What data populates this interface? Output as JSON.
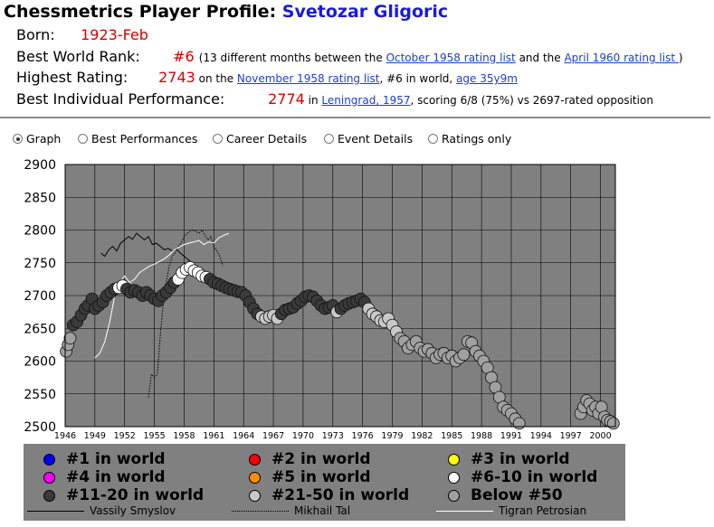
{
  "header": {
    "title_prefix": "Chessmetrics Player Profile:",
    "player_name": "Svetozar Gligoric"
  },
  "info": {
    "born_label": "Born:",
    "born_value": "1923-Feb",
    "rank_label": "Best World Rank:",
    "rank_value": "#6",
    "rank_text_1": "(13 different months between the ",
    "rank_link_1": "October 1958 rating list",
    "rank_text_2": " and the ",
    "rank_link_2": "April 1960 rating list ",
    "rank_text_3": ")",
    "highest_label": "Highest Rating:",
    "highest_value": "2743",
    "highest_text_1": " on the ",
    "highest_link_1": "November 1958 rating list",
    "highest_text_2": ", #6 in world, ",
    "highest_link_2": "age 35y9m",
    "perf_label": "Best Individual Performance:",
    "perf_value": "2774",
    "perf_text_1": " in ",
    "perf_link_1": "Leningrad, 1957",
    "perf_text_2": ", scoring 6/8 (75%) vs 2697-rated opposition"
  },
  "tabs": [
    {
      "label": "Graph",
      "selected": true
    },
    {
      "label": "Best Performances",
      "selected": false
    },
    {
      "label": "Career Details",
      "selected": false
    },
    {
      "label": "Event Details",
      "selected": false
    },
    {
      "label": "Ratings only",
      "selected": false
    }
  ],
  "legend": {
    "ranks": [
      {
        "label": "#1 in world",
        "color": "#0000ff"
      },
      {
        "label": "#2 in world",
        "color": "#ff0000"
      },
      {
        "label": "#3 in world",
        "color": "#ffff00"
      },
      {
        "label": "#4 in world",
        "color": "#ff00ff"
      },
      {
        "label": "#5 in world",
        "color": "#ff8c00"
      },
      {
        "label": "#6-10 in world",
        "color": "#ffffff"
      },
      {
        "label": "#11-20 in world",
        "color": "#3a3a3a"
      },
      {
        "label": "#21-50 in world",
        "color": "#c8c8c8"
      },
      {
        "label": "Below #50",
        "color": "#a0a0a0"
      }
    ],
    "players": [
      {
        "label": "Vassily Smyslov",
        "style": "solid",
        "color": "#000000"
      },
      {
        "label": "Mikhail Tal",
        "style": "dotted",
        "color": "#000000"
      },
      {
        "label": "Tigran Petrosian",
        "style": "solid",
        "color": "#ffffff"
      }
    ]
  },
  "chart_data": {
    "type": "scatter",
    "ylim": [
      2500,
      2900
    ],
    "xlim": [
      1946,
      2001.5
    ],
    "y_ticks": [
      2500,
      2550,
      2600,
      2650,
      2700,
      2750,
      2800,
      2850,
      2900
    ],
    "x_ticks": [
      "1946",
      "1949",
      "1952",
      "1955",
      "1958",
      "1961",
      "1964",
      "1967",
      "1970",
      "1973",
      "1976",
      "1979",
      "1982",
      "1985",
      "1988",
      "1991",
      "1994",
      "1997",
      "2000"
    ],
    "grid": true,
    "background": "#808080",
    "series": [
      {
        "name": "Svetozar Gligoric",
        "points": [
          [
            1946.1,
            2615,
            "b"
          ],
          [
            1946.3,
            2625,
            "b"
          ],
          [
            1946.5,
            2635,
            "b"
          ],
          [
            1946.8,
            2655,
            "d"
          ],
          [
            1947.2,
            2660,
            "d"
          ],
          [
            1947.6,
            2670,
            "d"
          ],
          [
            1948.0,
            2680,
            "d"
          ],
          [
            1948.3,
            2685,
            "d"
          ],
          [
            1948.7,
            2695,
            "d"
          ],
          [
            1949.0,
            2680,
            "d"
          ],
          [
            1949.4,
            2685,
            "d"
          ],
          [
            1949.8,
            2690,
            "d"
          ],
          [
            1950.2,
            2700,
            "d"
          ],
          [
            1950.6,
            2705,
            "d"
          ],
          [
            1951.0,
            2710,
            "d"
          ],
          [
            1951.4,
            2712,
            "w"
          ],
          [
            1951.8,
            2715,
            "w"
          ],
          [
            1952.2,
            2710,
            "d"
          ],
          [
            1952.6,
            2705,
            "d"
          ],
          [
            1953.0,
            2708,
            "d"
          ],
          [
            1953.4,
            2705,
            "d"
          ],
          [
            1953.8,
            2700,
            "d"
          ],
          [
            1954.2,
            2705,
            "d"
          ],
          [
            1954.6,
            2700,
            "d"
          ],
          [
            1955.0,
            2695,
            "d"
          ],
          [
            1955.4,
            2692,
            "d"
          ],
          [
            1955.8,
            2700,
            "d"
          ],
          [
            1956.2,
            2705,
            "d"
          ],
          [
            1956.6,
            2712,
            "d"
          ],
          [
            1957.0,
            2720,
            "d"
          ],
          [
            1957.4,
            2725,
            "w"
          ],
          [
            1957.8,
            2735,
            "w"
          ],
          [
            1958.2,
            2740,
            "w"
          ],
          [
            1958.6,
            2743,
            "w"
          ],
          [
            1959.0,
            2738,
            "w"
          ],
          [
            1959.4,
            2735,
            "w"
          ],
          [
            1959.8,
            2730,
            "w"
          ],
          [
            1960.2,
            2728,
            "w"
          ],
          [
            1960.6,
            2725,
            "d"
          ],
          [
            1961.0,
            2720,
            "d"
          ],
          [
            1961.4,
            2718,
            "d"
          ],
          [
            1961.8,
            2715,
            "d"
          ],
          [
            1962.2,
            2712,
            "d"
          ],
          [
            1962.6,
            2710,
            "d"
          ],
          [
            1963.0,
            2708,
            "d"
          ],
          [
            1963.4,
            2706,
            "d"
          ],
          [
            1963.8,
            2705,
            "d"
          ],
          [
            1964.2,
            2700,
            "d"
          ],
          [
            1964.6,
            2690,
            "d"
          ],
          [
            1965.0,
            2680,
            "d"
          ],
          [
            1965.4,
            2672,
            "d"
          ],
          [
            1965.8,
            2668,
            "l"
          ],
          [
            1966.2,
            2665,
            "l"
          ],
          [
            1966.6,
            2668,
            "l"
          ],
          [
            1967.0,
            2670,
            "l"
          ],
          [
            1967.4,
            2665,
            "l"
          ],
          [
            1967.8,
            2672,
            "d"
          ],
          [
            1968.2,
            2678,
            "d"
          ],
          [
            1968.6,
            2680,
            "d"
          ],
          [
            1969.0,
            2682,
            "d"
          ],
          [
            1969.4,
            2688,
            "d"
          ],
          [
            1969.8,
            2692,
            "d"
          ],
          [
            1970.2,
            2698,
            "d"
          ],
          [
            1970.6,
            2700,
            "d"
          ],
          [
            1971.0,
            2698,
            "d"
          ],
          [
            1971.4,
            2692,
            "d"
          ],
          [
            1971.8,
            2685,
            "d"
          ],
          [
            1972.2,
            2680,
            "d"
          ],
          [
            1972.6,
            2682,
            "d"
          ],
          [
            1973.0,
            2685,
            "d"
          ],
          [
            1973.4,
            2675,
            "l"
          ],
          [
            1973.8,
            2680,
            "d"
          ],
          [
            1974.2,
            2685,
            "d"
          ],
          [
            1974.6,
            2688,
            "d"
          ],
          [
            1975.0,
            2690,
            "d"
          ],
          [
            1975.4,
            2692,
            "d"
          ],
          [
            1975.8,
            2695,
            "d"
          ],
          [
            1976.2,
            2690,
            "d"
          ],
          [
            1976.6,
            2680,
            "l"
          ],
          [
            1977.0,
            2672,
            "l"
          ],
          [
            1977.4,
            2668,
            "l"
          ],
          [
            1977.8,
            2662,
            "l"
          ],
          [
            1978.2,
            2660,
            "l"
          ],
          [
            1978.6,
            2665,
            "l"
          ],
          [
            1979.0,
            2655,
            "l"
          ],
          [
            1979.4,
            2645,
            "l"
          ],
          [
            1979.8,
            2635,
            "b"
          ],
          [
            1980.2,
            2630,
            "b"
          ],
          [
            1980.6,
            2620,
            "b"
          ],
          [
            1981.0,
            2625,
            "b"
          ],
          [
            1981.4,
            2630,
            "b"
          ],
          [
            1981.8,
            2620,
            "b"
          ],
          [
            1982.2,
            2615,
            "b"
          ],
          [
            1982.6,
            2618,
            "b"
          ],
          [
            1983.0,
            2612,
            "b"
          ],
          [
            1983.4,
            2605,
            "b"
          ],
          [
            1983.8,
            2610,
            "b"
          ],
          [
            1984.2,
            2612,
            "b"
          ],
          [
            1984.6,
            2605,
            "b"
          ],
          [
            1985.0,
            2608,
            "b"
          ],
          [
            1985.4,
            2600,
            "b"
          ],
          [
            1985.8,
            2605,
            "b"
          ],
          [
            1986.2,
            2610,
            "b"
          ],
          [
            1986.6,
            2630,
            "b"
          ],
          [
            1987.0,
            2628,
            "b"
          ],
          [
            1987.4,
            2615,
            "b"
          ],
          [
            1987.8,
            2608,
            "b"
          ],
          [
            1988.2,
            2600,
            "b"
          ],
          [
            1988.6,
            2590,
            "b"
          ],
          [
            1989.0,
            2575,
            "b"
          ],
          [
            1989.4,
            2560,
            "b"
          ],
          [
            1989.8,
            2545,
            "b"
          ],
          [
            1990.2,
            2530,
            "b"
          ],
          [
            1990.6,
            2525,
            "b"
          ],
          [
            1991.0,
            2520,
            "b"
          ],
          [
            1991.4,
            2512,
            "b"
          ],
          [
            1991.8,
            2505,
            "b"
          ],
          [
            1998.0,
            2520,
            "b"
          ],
          [
            1998.3,
            2530,
            "b"
          ],
          [
            1998.6,
            2540,
            "b"
          ],
          [
            1998.9,
            2535,
            "b"
          ],
          [
            1999.2,
            2525,
            "b"
          ],
          [
            1999.5,
            2530,
            "b"
          ],
          [
            1999.8,
            2520,
            "b"
          ],
          [
            2000.1,
            2530,
            "b"
          ],
          [
            2000.4,
            2515,
            "b"
          ],
          [
            2000.7,
            2510,
            "b"
          ],
          [
            2001.0,
            2508,
            "b"
          ],
          [
            2001.3,
            2505,
            "b"
          ]
        ]
      },
      {
        "name": "Vassily Smyslov",
        "style": "solid",
        "color": "#000000",
        "points": [
          [
            1949.6,
            2765
          ],
          [
            1950.0,
            2760
          ],
          [
            1950.4,
            2770
          ],
          [
            1950.8,
            2775
          ],
          [
            1951.2,
            2768
          ],
          [
            1951.6,
            2780
          ],
          [
            1952.0,
            2785
          ],
          [
            1952.4,
            2790
          ],
          [
            1952.8,
            2786
          ],
          [
            1953.2,
            2795
          ],
          [
            1953.6,
            2790
          ],
          [
            1954.0,
            2785
          ],
          [
            1954.4,
            2790
          ],
          [
            1954.8,
            2778
          ],
          [
            1955.2,
            2780
          ],
          [
            1955.6,
            2775
          ],
          [
            1956.0,
            2770
          ],
          [
            1956.4,
            2772
          ],
          [
            1956.8,
            2768
          ],
          [
            1957.2,
            2772
          ],
          [
            1957.6,
            2765
          ],
          [
            1958.0,
            2760
          ],
          [
            1958.4,
            2755
          ],
          [
            1958.8,
            2750
          ],
          [
            1959.2,
            2745
          ]
        ]
      },
      {
        "name": "Mikhail Tal",
        "style": "dotted",
        "color": "#000000",
        "points": [
          [
            1954.4,
            2545
          ],
          [
            1954.5,
            2555
          ],
          [
            1954.7,
            2580
          ],
          [
            1955.0,
            2575
          ],
          [
            1955.3,
            2580
          ],
          [
            1955.6,
            2640
          ],
          [
            1955.9,
            2690
          ],
          [
            1956.2,
            2720
          ],
          [
            1956.5,
            2745
          ],
          [
            1956.8,
            2760
          ],
          [
            1957.1,
            2765
          ],
          [
            1957.4,
            2775
          ],
          [
            1957.7,
            2780
          ],
          [
            1958.0,
            2790
          ],
          [
            1958.3,
            2795
          ],
          [
            1958.6,
            2798
          ],
          [
            1958.9,
            2800
          ],
          [
            1959.2,
            2798
          ],
          [
            1959.5,
            2795
          ],
          [
            1959.8,
            2800
          ],
          [
            1960.1,
            2792
          ],
          [
            1960.4,
            2785
          ],
          [
            1960.7,
            2790
          ],
          [
            1961.0,
            2775
          ],
          [
            1961.3,
            2768
          ],
          [
            1961.6,
            2760
          ],
          [
            1961.9,
            2745
          ]
        ]
      },
      {
        "name": "Tigran Petrosian",
        "style": "solid",
        "color": "#ffffff",
        "points": [
          [
            1949.0,
            2605
          ],
          [
            1949.5,
            2612
          ],
          [
            1950.0,
            2630
          ],
          [
            1950.5,
            2660
          ],
          [
            1951.0,
            2700
          ],
          [
            1951.5,
            2720
          ],
          [
            1952.0,
            2730
          ],
          [
            1952.5,
            2720
          ],
          [
            1953.0,
            2725
          ],
          [
            1953.5,
            2735
          ],
          [
            1954.0,
            2740
          ],
          [
            1954.5,
            2745
          ],
          [
            1955.0,
            2748
          ],
          [
            1955.5,
            2752
          ],
          [
            1956.0,
            2756
          ],
          [
            1956.5,
            2762
          ],
          [
            1957.0,
            2770
          ],
          [
            1957.5,
            2774
          ],
          [
            1958.0,
            2778
          ],
          [
            1958.5,
            2780
          ],
          [
            1959.0,
            2782
          ],
          [
            1959.5,
            2784
          ],
          [
            1960.0,
            2778
          ],
          [
            1960.5,
            2782
          ],
          [
            1961.0,
            2780
          ],
          [
            1961.5,
            2788
          ],
          [
            1962.0,
            2792
          ],
          [
            1962.5,
            2795
          ]
        ]
      }
    ]
  }
}
